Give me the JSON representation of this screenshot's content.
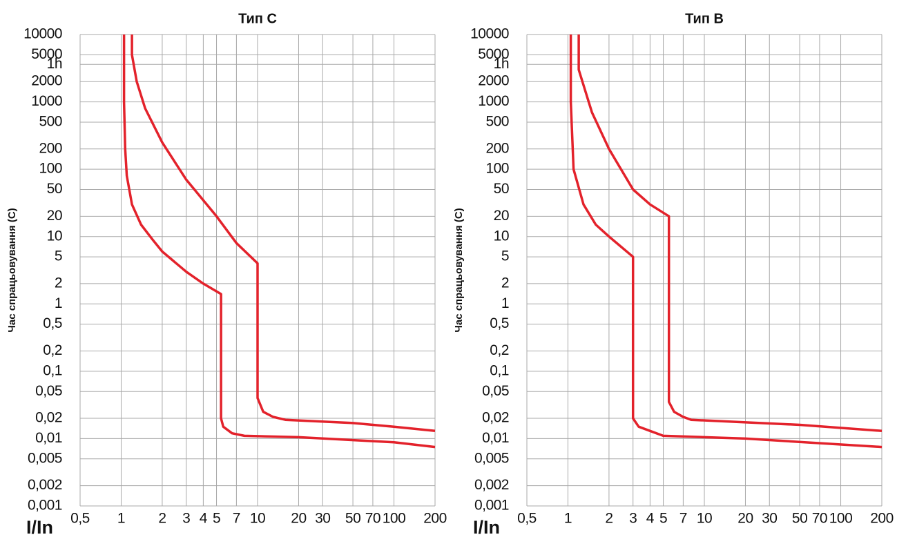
{
  "chart_data": [
    {
      "type": "line",
      "title": "Тип C",
      "y_label": "Час спрацьовування (С)",
      "x_label": "I/In",
      "log_x": true,
      "log_y": true,
      "grid": true,
      "xlim": [
        0.5,
        200
      ],
      "ylim": [
        0.001,
        10000
      ],
      "xticks": [
        {
          "value": 0.5,
          "label": "0,5"
        },
        1,
        2,
        3,
        4,
        5,
        7,
        10,
        20,
        30,
        50,
        70,
        100,
        200
      ],
      "yticks": [
        {
          "value": 0.001,
          "label": "0,001"
        },
        {
          "value": 0.002,
          "label": "0,002"
        },
        {
          "value": 0.005,
          "label": "0,005"
        },
        {
          "value": 0.01,
          "label": "0,01"
        },
        {
          "value": 0.02,
          "label": "0,02"
        },
        {
          "value": 0.05,
          "label": "0,05"
        },
        {
          "value": 0.1,
          "label": "0,1"
        },
        {
          "value": 0.2,
          "label": "0,2"
        },
        {
          "value": 0.5,
          "label": "0,5"
        },
        1,
        2,
        5,
        10,
        20,
        50,
        100,
        200,
        500,
        1000,
        2000,
        {
          "value": 3600,
          "label": "1h"
        },
        5000,
        10000
      ],
      "series": [
        {
          "color": "#e3222b",
          "x": [
            1.05,
            1.05,
            1.07,
            1.1,
            1.2,
            1.4,
            1.7,
            2,
            3,
            4,
            5.4,
            5.4,
            5.6,
            6.5,
            8,
            20,
            50,
            100,
            200
          ],
          "values": [
            10000,
            1000,
            200,
            80,
            30,
            15,
            9,
            6,
            3,
            2,
            1.4,
            0.02,
            0.015,
            0.012,
            0.011,
            0.0105,
            0.0095,
            0.0088,
            0.0075
          ]
        },
        {
          "color": "#e3222b",
          "x": [
            1.2,
            1.2,
            1.3,
            1.5,
            2,
            3,
            5,
            7,
            10,
            10,
            11,
            13,
            16,
            50,
            100,
            200
          ],
          "values": [
            10000,
            5000,
            2000,
            800,
            250,
            70,
            20,
            8,
            4,
            0.04,
            0.025,
            0.021,
            0.019,
            0.017,
            0.015,
            0.013
          ]
        }
      ]
    },
    {
      "type": "line",
      "title": "Тип B",
      "y_label": "Час спрацьовування (С)",
      "x_label": "I/In",
      "log_x": true,
      "log_y": true,
      "grid": true,
      "xlim": [
        0.5,
        200
      ],
      "ylim": [
        0.001,
        10000
      ],
      "xticks": [
        {
          "value": 0.5,
          "label": "0,5"
        },
        1,
        2,
        3,
        4,
        5,
        7,
        10,
        20,
        30,
        50,
        70,
        100,
        200
      ],
      "yticks": [
        {
          "value": 0.001,
          "label": "0,001"
        },
        {
          "value": 0.002,
          "label": "0,002"
        },
        {
          "value": 0.005,
          "label": "0,005"
        },
        {
          "value": 0.01,
          "label": "0,01"
        },
        {
          "value": 0.02,
          "label": "0,02"
        },
        {
          "value": 0.05,
          "label": "0,05"
        },
        {
          "value": 0.1,
          "label": "0,1"
        },
        {
          "value": 0.2,
          "label": "0,2"
        },
        {
          "value": 0.5,
          "label": "0,5"
        },
        1,
        2,
        5,
        10,
        20,
        50,
        100,
        200,
        500,
        1000,
        2000,
        {
          "value": 3600,
          "label": "1h"
        },
        5000,
        10000
      ],
      "series": [
        {
          "color": "#e3222b",
          "x": [
            1.05,
            1.05,
            1.1,
            1.3,
            1.6,
            2,
            3,
            3,
            3.3,
            4,
            5,
            20,
            200
          ],
          "values": [
            10000,
            1000,
            100,
            30,
            15,
            10,
            5,
            0.02,
            0.015,
            0.013,
            0.011,
            0.01,
            0.0075
          ]
        },
        {
          "color": "#e3222b",
          "x": [
            1.2,
            1.2,
            1.5,
            2,
            3,
            4,
            5.5,
            5.5,
            6,
            7,
            8,
            50,
            200
          ],
          "values": [
            10000,
            3000,
            700,
            200,
            50,
            30,
            20,
            0.035,
            0.025,
            0.021,
            0.019,
            0.016,
            0.013
          ]
        }
      ]
    }
  ]
}
